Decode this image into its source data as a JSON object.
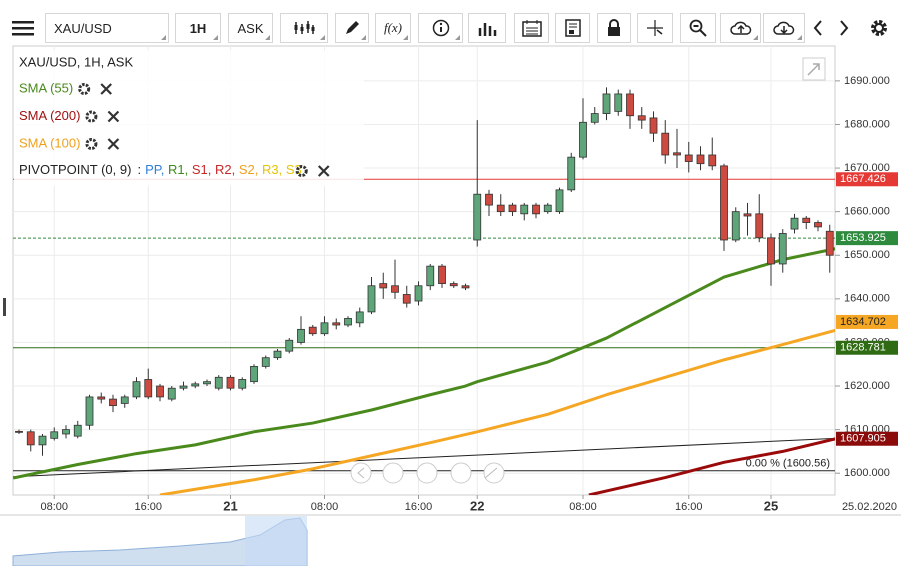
{
  "toolbar": {
    "symbol": "XAU/USD",
    "interval": "1H",
    "side": "ASK",
    "fx": "f(x)"
  },
  "legend": {
    "main": "XAU/USD, 1H, ASK",
    "indicators": [
      {
        "label": "SMA (55)",
        "color": "#4a8a1c"
      },
      {
        "label": "SMA (200)",
        "color": "#a01010"
      },
      {
        "label": "SMA (100)",
        "color": "#f0a01e"
      }
    ],
    "pivot": "PIVOTPOINT (0, 9)",
    "pivot_prefix": ":",
    "pivot_separator": ", ",
    "pivot_items": [
      {
        "text": "PP",
        "color": "#2f7fd8"
      },
      {
        "text": "R1",
        "color": "#3d8a1a"
      },
      {
        "text": "S1",
        "color": "#c62828"
      },
      {
        "text": "R2",
        "color": "#c62828"
      },
      {
        "text": "S2",
        "color": "#f0a01e"
      },
      {
        "text": "R3",
        "color": "#e5c400"
      },
      {
        "text": "S3",
        "color": "#e5c400"
      }
    ]
  },
  "chart_data": {
    "type": "candlestick",
    "categories": [
      null,
      null,
      null,
      "08:00",
      null,
      null,
      null,
      null,
      null,
      null,
      null,
      "16:00",
      null,
      null,
      null,
      null,
      null,
      null,
      "21",
      null,
      null,
      null,
      null,
      null,
      null,
      null,
      "08:00",
      null,
      null,
      null,
      null,
      null,
      null,
      null,
      "16:00",
      null,
      null,
      null,
      null,
      "22",
      null,
      null,
      null,
      null,
      null,
      null,
      null,
      null,
      "08:00",
      null,
      null,
      null,
      null,
      null,
      null,
      null,
      null,
      "16:00",
      null,
      null,
      null,
      null,
      null,
      null,
      "25",
      null,
      null,
      null,
      null,
      null
    ],
    "open": [
      1609.6,
      1609.5,
      1606.5,
      1608,
      1609,
      1608.5,
      1611,
      1617.5,
      1617,
      1616,
      1617.5,
      1621.5,
      1620,
      1617,
      1619.5,
      1620,
      1620.5,
      1619.5,
      1622,
      1619.5,
      1621,
      1624.5,
      1626.5,
      1628,
      1630,
      1633.5,
      1632,
      1634.5,
      1634,
      1634.5,
      1637,
      1643.5,
      1643,
      1641,
      1639.5,
      1643,
      1647.5,
      1643.5,
      1643,
      1653.5,
      1664,
      1661.5,
      1661.5,
      1659.5,
      1661.5,
      1660,
      1660,
      1665,
      1672.5,
      1680.5,
      1682.5,
      1683,
      1687,
      1682,
      1681.5,
      1678,
      1673.5,
      1673,
      1673,
      1673,
      1670.5,
      1653.5,
      1659.5,
      1659.5,
      1654,
      1648,
      1656,
      1658.5,
      1657.5,
      1655.5
    ],
    "high": [
      1610,
      1610,
      1609,
      1610.5,
      1611,
      1612,
      1618,
      1618.5,
      1618,
      1618,
      1622,
      1624,
      1620.5,
      1620,
      1621,
      1621,
      1621.5,
      1622.5,
      1622.5,
      1622,
      1625,
      1627,
      1628.5,
      1631,
      1636,
      1634,
      1636,
      1635.5,
      1636,
      1638,
      1645,
      1646,
      1649,
      1643,
      1644,
      1648,
      1648,
      1644,
      1643.5,
      1681,
      1665,
      1664,
      1662,
      1662,
      1662,
      1662,
      1665.5,
      1673.5,
      1686,
      1684,
      1688.5,
      1688,
      1688,
      1684,
      1683,
      1681,
      1679,
      1676,
      1675,
      1677,
      1671,
      1661,
      1662,
      1664,
      1655,
      1656,
      1659.5,
      1659,
      1658,
      1657
    ],
    "low": [
      1609,
      1605,
      1604,
      1607.5,
      1608,
      1608,
      1610,
      1616,
      1614,
      1615,
      1617,
      1617,
      1616.5,
      1616.5,
      1619,
      1619.5,
      1620,
      1619,
      1619,
      1619,
      1620.5,
      1624,
      1626,
      1627.5,
      1629.5,
      1631.5,
      1631.5,
      1633,
      1633.5,
      1633.5,
      1636.5,
      1640,
      1640,
      1638,
      1638.5,
      1642,
      1642.5,
      1642.5,
      1642,
      1652,
      1659,
      1659,
      1659,
      1658,
      1658.5,
      1659.5,
      1659.5,
      1664.5,
      1672,
      1680,
      1681,
      1682,
      1679,
      1679,
      1676,
      1671,
      1670,
      1669,
      1669.5,
      1669.5,
      1651,
      1653,
      1654.5,
      1653,
      1643,
      1646,
      1655,
      1656,
      1655.5,
      1646
    ],
    "close": [
      1609.4,
      1606.5,
      1608.5,
      1609.5,
      1610,
      1611,
      1617.5,
      1617,
      1615.5,
      1617.5,
      1621,
      1617.5,
      1617.5,
      1619.5,
      1620,
      1620.5,
      1621,
      1622,
      1619.5,
      1621.5,
      1624.5,
      1626.5,
      1628,
      1630.5,
      1633,
      1632,
      1634.5,
      1634,
      1635.5,
      1637,
      1643,
      1642.5,
      1641.5,
      1639,
      1643,
      1647.5,
      1643.5,
      1643,
      1642.5,
      1664,
      1661.5,
      1660,
      1660,
      1661.5,
      1659.5,
      1661.5,
      1665,
      1672.5,
      1680.5,
      1682.5,
      1687,
      1687,
      1682,
      1681,
      1678,
      1673,
      1673,
      1671.5,
      1671,
      1670.5,
      1653.5,
      1660,
      1659,
      1654,
      1648,
      1655,
      1658.5,
      1657.5,
      1656.5,
      1650
    ],
    "series": [
      {
        "name": "SMA (55)",
        "color": "#4a8a1c",
        "x": [
          -0.5,
          5,
          10,
          15,
          20,
          25,
          30,
          35,
          38,
          39,
          45,
          50,
          55,
          60,
          65,
          69.5
        ],
        "values": [
          1598.9,
          1602,
          1604.5,
          1606.5,
          1609.5,
          1611.5,
          1614.5,
          1618,
          1620,
          1621,
          1625.5,
          1631,
          1638,
          1645,
          1649,
          1651.5
        ]
      },
      {
        "name": "SMA (100)",
        "color": "#f5a623",
        "x": [
          12,
          20,
          25,
          30,
          35,
          39,
          45,
          50,
          55,
          60,
          65,
          69.5
        ],
        "values": [
          1595,
          1598.5,
          1601,
          1604,
          1607,
          1609.5,
          1613.5,
          1618,
          1622,
          1626,
          1629.5,
          1632.8
        ]
      },
      {
        "name": "SMA (200)",
        "color": "#9b0a0a",
        "x": [
          48.5,
          55,
          60,
          65,
          69.5
        ],
        "values": [
          1595,
          1599,
          1602.5,
          1605,
          1607.9
        ]
      }
    ],
    "trendline": {
      "x": [
        -0.5,
        69.5
      ],
      "values": [
        1599.2,
        1608
      ]
    },
    "fib": {
      "value": 1600.56,
      "label": "0.00 % (1600.56)"
    },
    "levels": [
      {
        "value": 1667.426,
        "color": "#e53935",
        "line": "solid",
        "text_color": "#ffffff"
      },
      {
        "value": 1653.925,
        "color": "#2e8b3e",
        "line": "dashed",
        "text_color": "#ffffff"
      },
      {
        "value": 1634.702,
        "color": "#f5a623",
        "line": "none",
        "text_color": "#222222"
      },
      {
        "value": 1628.781,
        "color": "#2f6b12",
        "line": "solid",
        "text_color": "#ffffff"
      },
      {
        "value": 1607.905,
        "color": "#8b0a0a",
        "line": "none",
        "text_color": "#ffffff"
      }
    ],
    "date_label": "25.02.2020",
    "ylim": [
      1595,
      1698
    ],
    "yticks": [
      {
        "value": 1600,
        "label": "1600.000"
      },
      {
        "value": 1610,
        "label": "1610.000"
      },
      {
        "value": 1620,
        "label": "1620.000"
      },
      {
        "value": 1630,
        "label": "1630.000"
      },
      {
        "value": 1640,
        "label": "1640.000"
      },
      {
        "value": 1650,
        "label": "1650.000"
      },
      {
        "value": 1660,
        "label": "1660.000"
      },
      {
        "value": 1670,
        "label": "1670.000"
      },
      {
        "value": 1680,
        "label": "1680.000"
      },
      {
        "value": 1690,
        "label": "1690.000"
      }
    ],
    "grid": true,
    "up_color": "#5fa57a",
    "down_color": "#cc4a3f"
  }
}
